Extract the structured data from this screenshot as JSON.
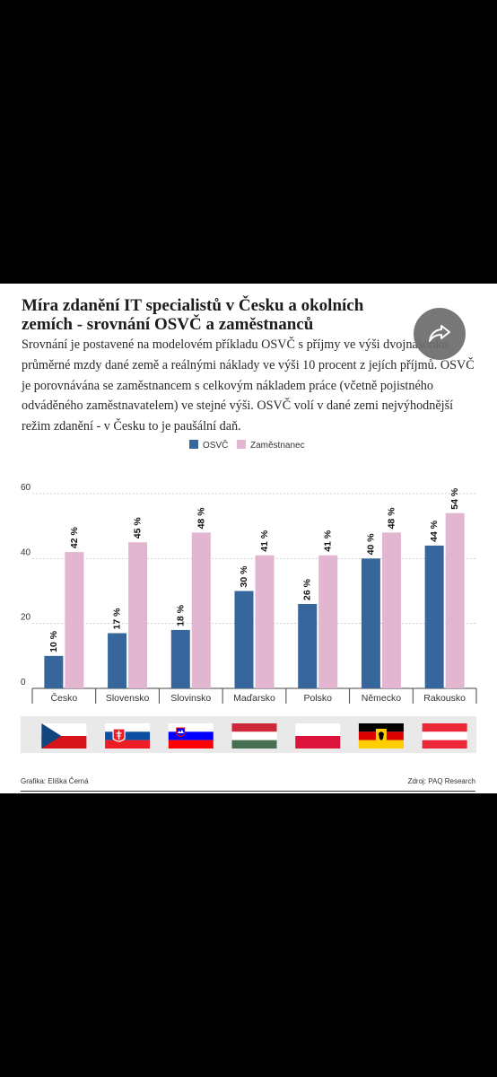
{
  "title": "Míra zdanění IT specialistů v Česku a okolních zemích - srovnání OSVČ a zaměstnanců",
  "description": "Srovnání je postavené na modelovém příkladu OSVČ s příjmy ve výši dvojnásobku průměrné mzdy dané země a reálnými náklady ve výši 10 procent z jejích příjmů. OSVČ je porovnávána se zaměstnancem s celkovým nákladem práce (včetně pojistného odváděného zaměstnavatelem) ve stejné výši. OSVČ volí v dané zemi nejvýhodnější režim zdanění - v Česku to je paušální daň.",
  "share_icon": "share-icon",
  "footer": {
    "credit": "Grafika: Eliška Černá",
    "source": "Zdroj: PAQ Research"
  },
  "colors": {
    "osvc": "#36669b",
    "zamestnanec": "#e2b6d0",
    "flag_band": "#e9e9e9"
  },
  "flags": [
    "cz-flag-icon",
    "sk-flag-icon",
    "si-flag-icon",
    "hu-flag-icon",
    "pl-flag-icon",
    "de-flag-icon",
    "at-flag-icon"
  ],
  "chart_data": {
    "type": "bar",
    "categories": [
      "Česko",
      "Slovensko",
      "Slovinsko",
      "Maďarsko",
      "Polsko",
      "Německo",
      "Rakousko"
    ],
    "series": [
      {
        "name": "OSVČ",
        "values": [
          10,
          17,
          18,
          30,
          26,
          40,
          44
        ],
        "labels": [
          "10 %",
          "17 %",
          "18 %",
          "30 %",
          "26 %",
          "40 %",
          "44 %"
        ]
      },
      {
        "name": "Zaměstnanec",
        "values": [
          42,
          45,
          48,
          41,
          41,
          48,
          54
        ],
        "labels": [
          "42 %",
          "45 %",
          "48 %",
          "41 %",
          "41 %",
          "48 %",
          "54 %"
        ]
      }
    ],
    "yticks": [
      "0",
      "20",
      "40",
      "60"
    ],
    "ylim": [
      0,
      60
    ],
    "grid": true,
    "legend_position": "top-center",
    "xlabel": "",
    "ylabel": ""
  }
}
